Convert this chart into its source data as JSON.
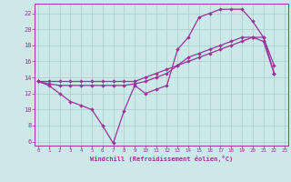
{
  "xlabel": "Windchill (Refroidissement éolien,°C)",
  "bg_color": "#cce8e8",
  "grid_color": "#aacccc",
  "line_color": "#993399",
  "xlim": [
    -0.3,
    23.3
  ],
  "ylim": [
    5.5,
    23.2
  ],
  "xtick_positions": [
    0,
    1,
    2,
    3,
    4,
    5,
    6,
    7,
    8,
    9,
    10,
    11,
    12,
    13,
    14,
    15,
    16,
    17,
    18,
    19,
    20,
    21,
    22,
    23
  ],
  "xtick_labels": [
    "0",
    "1",
    "2",
    "3",
    "4",
    "5",
    "6",
    "7",
    "8",
    "9",
    "10",
    "11",
    "12",
    "13",
    "14",
    "15",
    "16",
    "17",
    "18",
    "19",
    "20",
    "21",
    "22",
    "23"
  ],
  "ytick_positions": [
    6,
    8,
    10,
    12,
    14,
    16,
    18,
    20,
    22
  ],
  "ytick_labels": [
    "6",
    "8",
    "10",
    "12",
    "14",
    "16",
    "18",
    "20",
    "22"
  ],
  "line1_x": [
    0,
    1,
    2,
    3,
    4,
    5,
    6,
    7,
    8,
    9,
    10,
    11,
    12,
    13,
    14,
    15,
    16,
    17,
    18,
    19,
    20,
    21,
    22
  ],
  "line1_y": [
    13.5,
    13.0,
    12.0,
    11.0,
    10.5,
    10.0,
    8.0,
    5.8,
    9.8,
    13.0,
    12.0,
    12.5,
    13.0,
    17.5,
    19.0,
    21.5,
    22.0,
    22.5,
    22.5,
    22.5,
    21.0,
    19.0,
    15.5
  ],
  "line2_x": [
    0,
    1,
    2,
    3,
    4,
    5,
    6,
    7,
    8,
    9,
    10,
    11,
    12,
    13,
    14,
    15,
    16,
    17,
    18,
    19,
    20,
    21,
    22
  ],
  "line2_y": [
    13.5,
    13.2,
    13.0,
    13.0,
    13.0,
    13.0,
    13.0,
    13.0,
    13.0,
    13.2,
    13.5,
    14.0,
    14.5,
    15.5,
    16.5,
    17.0,
    17.5,
    18.0,
    18.5,
    19.0,
    19.0,
    18.5,
    14.5
  ],
  "line3_x": [
    0,
    1,
    2,
    3,
    4,
    5,
    6,
    7,
    8,
    9,
    10,
    11,
    12,
    13,
    14,
    15,
    16,
    17,
    18,
    19,
    20,
    21,
    22
  ],
  "line3_y": [
    13.5,
    13.5,
    13.5,
    13.5,
    13.5,
    13.5,
    13.5,
    13.5,
    13.5,
    13.5,
    14.0,
    14.5,
    15.0,
    15.5,
    16.0,
    16.5,
    17.0,
    17.5,
    18.0,
    18.5,
    19.0,
    19.0,
    14.5
  ]
}
